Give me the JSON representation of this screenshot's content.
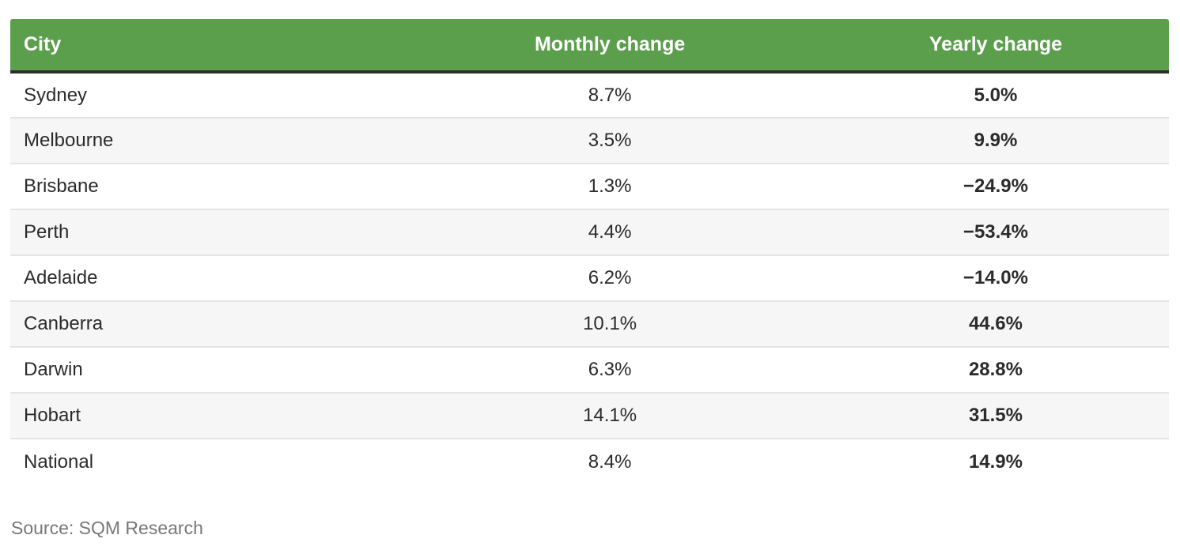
{
  "colors": {
    "header-green": "#5b9e4c",
    "header-text": "#ffffff",
    "header-border": "#2d2d2d",
    "row-alt-bg": "#f6f6f6",
    "row-divider": "#e4e4e4",
    "cell-text": "#2b2b2b",
    "source-text": "#777777",
    "page-bg": "#ffffff"
  },
  "source": "Source: SQM Research",
  "chart_data": {
    "type": "table",
    "title": "",
    "columns": [
      "City",
      "Monthly change",
      "Yearly change"
    ],
    "rows": [
      {
        "city": "Sydney",
        "monthly": "8.7%",
        "yearly": "5.0%"
      },
      {
        "city": "Melbourne",
        "monthly": "3.5%",
        "yearly": "9.9%"
      },
      {
        "city": "Brisbane",
        "monthly": "1.3%",
        "yearly": "−24.9%"
      },
      {
        "city": "Perth",
        "monthly": "4.4%",
        "yearly": "−53.4%"
      },
      {
        "city": "Adelaide",
        "monthly": "6.2%",
        "yearly": "−14.0%"
      },
      {
        "city": "Canberra",
        "monthly": "10.1%",
        "yearly": "44.6%"
      },
      {
        "city": "Darwin",
        "monthly": "6.3%",
        "yearly": "28.8%"
      },
      {
        "city": "Hobart",
        "monthly": "14.1%",
        "yearly": "31.5%"
      },
      {
        "city": "National",
        "monthly": "8.4%",
        "yearly": "14.9%"
      }
    ],
    "columns_meta": {
      "city": {
        "align": "left",
        "weight": "regular"
      },
      "monthly": {
        "align": "center",
        "weight": "regular"
      },
      "yearly": {
        "align": "center",
        "weight": "bold"
      }
    },
    "monthly_values_numeric": [
      8.7,
      3.5,
      1.3,
      4.4,
      6.2,
      10.1,
      6.3,
      14.1,
      8.4
    ],
    "yearly_values_numeric": [
      5.0,
      9.9,
      -24.9,
      -53.4,
      -14.0,
      44.6,
      28.8,
      31.5,
      14.9
    ]
  },
  "table": {
    "columns": [
      {
        "label": "City"
      },
      {
        "label": "Monthly change"
      },
      {
        "label": "Yearly change"
      }
    ],
    "rows": [
      {
        "city": "Sydney",
        "monthly": "8.7%",
        "yearly": "5.0%"
      },
      {
        "city": "Melbourne",
        "monthly": "3.5%",
        "yearly": "9.9%"
      },
      {
        "city": "Brisbane",
        "monthly": "1.3%",
        "yearly": "−24.9%"
      },
      {
        "city": "Perth",
        "monthly": "4.4%",
        "yearly": "−53.4%"
      },
      {
        "city": "Adelaide",
        "monthly": "6.2%",
        "yearly": "−14.0%"
      },
      {
        "city": "Canberra",
        "monthly": "10.1%",
        "yearly": "44.6%"
      },
      {
        "city": "Darwin",
        "monthly": "6.3%",
        "yearly": "28.8%"
      },
      {
        "city": "Hobart",
        "monthly": "14.1%",
        "yearly": "31.5%"
      },
      {
        "city": "National",
        "monthly": "8.4%",
        "yearly": "14.9%"
      }
    ]
  }
}
